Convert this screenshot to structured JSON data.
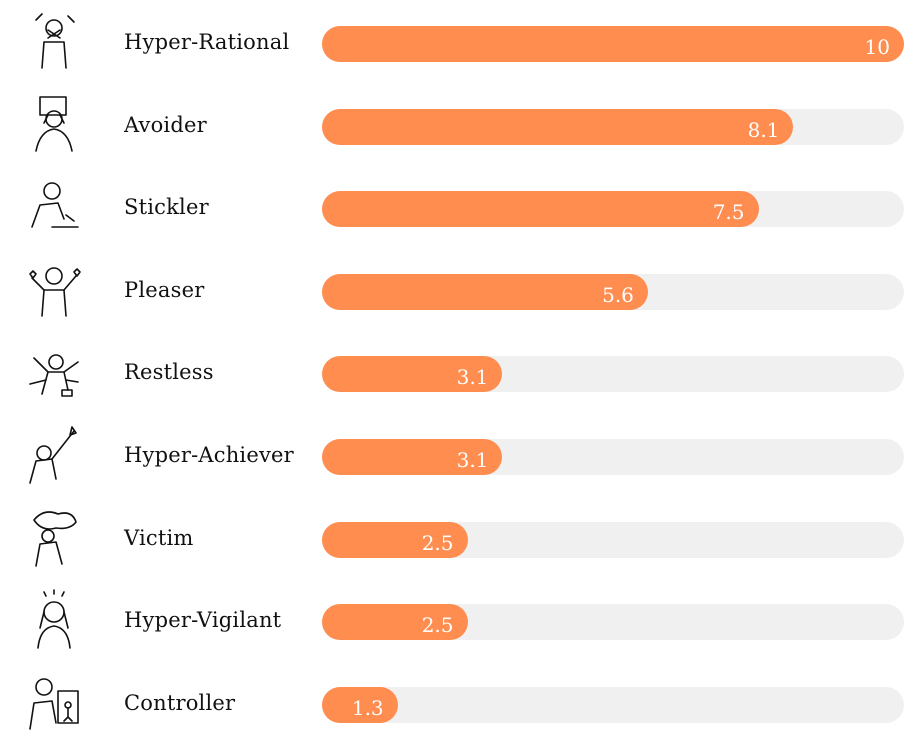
{
  "chart_data": {
    "type": "bar",
    "orientation": "horizontal",
    "categories": [
      "Hyper-Rational",
      "Avoider",
      "Stickler",
      "Pleaser",
      "Restless",
      "Hyper-Achiever",
      "Victim",
      "Hyper-Vigilant",
      "Controller"
    ],
    "values": [
      10,
      8.1,
      7.5,
      5.6,
      3.1,
      3.1,
      2.5,
      2.5,
      1.3
    ],
    "value_labels": [
      "10",
      "8.1",
      "7.5",
      "5.6",
      "3.1",
      "3.1",
      "2.5",
      "2.5",
      "1.3"
    ],
    "xlim": [
      0,
      10
    ],
    "bar_color": "#fe8d4f",
    "track_color": "#f0f0f0",
    "grid": false,
    "icons": [
      "hyper-rational-illustration-icon",
      "avoider-illustration-icon",
      "stickler-illustration-icon",
      "pleaser-illustration-icon",
      "restless-illustration-icon",
      "hyper-achiever-illustration-icon",
      "victim-illustration-icon",
      "hyper-vigilant-illustration-icon",
      "controller-illustration-icon"
    ]
  }
}
